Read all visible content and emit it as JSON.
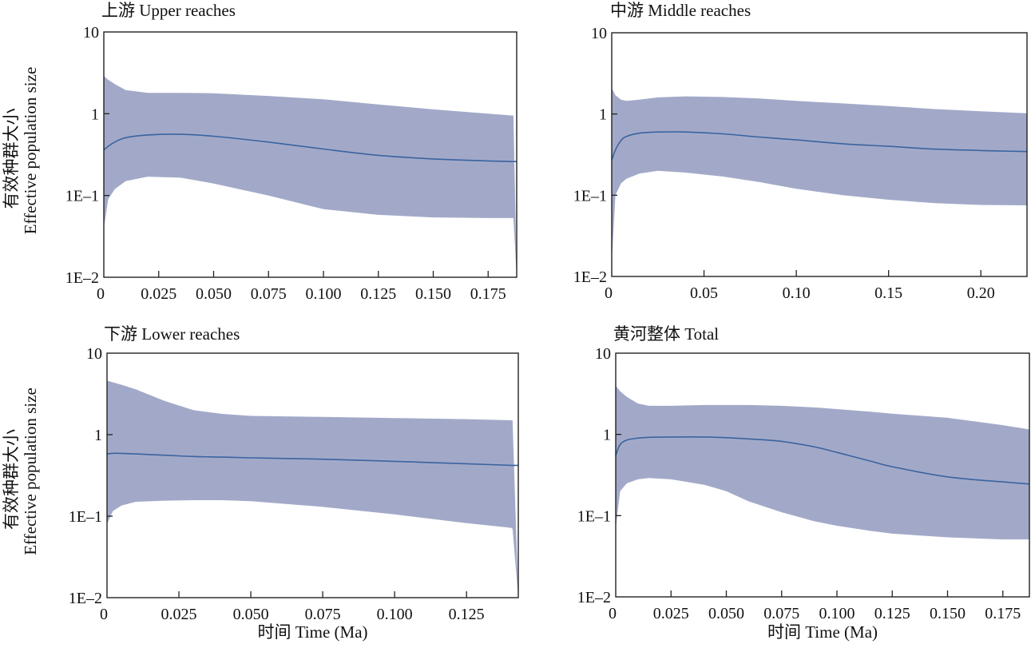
{
  "chart_data": [
    {
      "type": "area",
      "title": "上游 Upper reaches",
      "xlabel": "",
      "ylabel_cn": "有效种群大小",
      "ylabel_en": "Effective population size",
      "yscale": "log",
      "ylim": [
        0.01,
        10
      ],
      "xlim": [
        0,
        0.188
      ],
      "yticks": [
        {
          "v": 10,
          "label": "10"
        },
        {
          "v": 1,
          "label": "1"
        },
        {
          "v": 0.1,
          "label": "1E–1"
        },
        {
          "v": 0.01,
          "label": "1E–2"
        }
      ],
      "xticks": [
        {
          "v": 0,
          "label": "0"
        },
        {
          "v": 0.025,
          "label": "0.025"
        },
        {
          "v": 0.05,
          "label": "0.050"
        },
        {
          "v": 0.075,
          "label": "0.075"
        },
        {
          "v": 0.1,
          "label": "0.100"
        },
        {
          "v": 0.125,
          "label": "0.125"
        },
        {
          "v": 0.15,
          "label": "0.150"
        },
        {
          "v": 0.175,
          "label": "0.175"
        }
      ],
      "x": [
        0,
        0.002,
        0.005,
        0.01,
        0.02,
        0.035,
        0.05,
        0.075,
        0.1,
        0.125,
        0.15,
        0.175,
        0.186,
        0.1865,
        0.188
      ],
      "upper": [
        2.9,
        2.6,
        2.3,
        1.95,
        1.8,
        1.8,
        1.78,
        1.65,
        1.5,
        1.3,
        1.13,
        1.0,
        0.95,
        0.95,
        0.01
      ],
      "median": [
        0.36,
        0.4,
        0.45,
        0.51,
        0.55,
        0.56,
        0.53,
        0.45,
        0.37,
        0.31,
        0.28,
        0.265,
        0.26,
        0.26,
        0.26
      ],
      "lower": [
        0.04,
        0.09,
        0.12,
        0.15,
        0.17,
        0.165,
        0.14,
        0.1,
        0.068,
        0.058,
        0.054,
        0.053,
        0.053,
        0.053,
        0.01
      ]
    },
    {
      "type": "area",
      "title": "中游 Middle  reaches",
      "xlabel": "",
      "yscale": "log",
      "ylim": [
        0.01,
        10
      ],
      "xlim": [
        0,
        0.225
      ],
      "yticks": [
        {
          "v": 10,
          "label": "10"
        },
        {
          "v": 1,
          "label": "1"
        },
        {
          "v": 0.1,
          "label": "1E–1"
        },
        {
          "v": 0.01,
          "label": "1E–2"
        }
      ],
      "xticks": [
        {
          "v": 0,
          "label": "0"
        },
        {
          "v": 0.05,
          "label": "0.05"
        },
        {
          "v": 0.1,
          "label": "0.10"
        },
        {
          "v": 0.15,
          "label": "0.15"
        },
        {
          "v": 0.2,
          "label": "0.20"
        }
      ],
      "x": [
        0,
        0.002,
        0.005,
        0.008,
        0.015,
        0.025,
        0.04,
        0.06,
        0.08,
        0.1,
        0.125,
        0.15,
        0.175,
        0.2,
        0.225
      ],
      "upper": [
        2.1,
        1.7,
        1.5,
        1.45,
        1.5,
        1.6,
        1.65,
        1.62,
        1.55,
        1.45,
        1.35,
        1.25,
        1.15,
        1.08,
        1.02
      ],
      "median": [
        0.27,
        0.36,
        0.47,
        0.53,
        0.58,
        0.6,
        0.6,
        0.57,
        0.52,
        0.48,
        0.43,
        0.4,
        0.37,
        0.355,
        0.345
      ],
      "lower": [
        0.015,
        0.1,
        0.14,
        0.16,
        0.185,
        0.2,
        0.19,
        0.17,
        0.145,
        0.12,
        0.1,
        0.088,
        0.08,
        0.076,
        0.075
      ]
    },
    {
      "type": "area",
      "title": "下游 Lower reaches",
      "xlabel": "时间 Time (Ma)",
      "ylabel_cn": "有效种群大小",
      "ylabel_en": "Effective population size",
      "yscale": "log",
      "ylim": [
        0.01,
        10
      ],
      "xlim": [
        0,
        0.143
      ],
      "yticks": [
        {
          "v": 10,
          "label": "10"
        },
        {
          "v": 1,
          "label": "1"
        },
        {
          "v": 0.1,
          "label": "1E–1"
        },
        {
          "v": 0.01,
          "label": "1E–2"
        }
      ],
      "xticks": [
        {
          "v": 0,
          "label": "0"
        },
        {
          "v": 0.025,
          "label": "0.025"
        },
        {
          "v": 0.05,
          "label": "0.050"
        },
        {
          "v": 0.075,
          "label": "0.075"
        },
        {
          "v": 0.1,
          "label": "0.100"
        },
        {
          "v": 0.125,
          "label": "0.125"
        }
      ],
      "x": [
        0,
        0.002,
        0.005,
        0.01,
        0.02,
        0.03,
        0.04,
        0.05,
        0.075,
        0.1,
        0.125,
        0.1405,
        0.141,
        0.143
      ],
      "upper": [
        4.6,
        4.4,
        4.1,
        3.6,
        2.6,
        2.0,
        1.8,
        1.7,
        1.65,
        1.6,
        1.55,
        1.5,
        1.5,
        0.01
      ],
      "median": [
        0.58,
        0.59,
        0.59,
        0.58,
        0.56,
        0.54,
        0.53,
        0.52,
        0.5,
        0.47,
        0.44,
        0.42,
        0.42,
        0.42
      ],
      "lower": [
        0.08,
        0.115,
        0.135,
        0.15,
        0.155,
        0.157,
        0.157,
        0.153,
        0.13,
        0.105,
        0.082,
        0.072,
        0.07,
        0.01
      ]
    },
    {
      "type": "area",
      "title": "黄河整体 Total",
      "xlabel": "时间 Time (Ma)",
      "yscale": "log",
      "ylim": [
        0.01,
        10
      ],
      "xlim": [
        0,
        0.187
      ],
      "yticks": [
        {
          "v": 10,
          "label": "10"
        },
        {
          "v": 1,
          "label": "1"
        },
        {
          "v": 0.1,
          "label": "1E–1"
        },
        {
          "v": 0.01,
          "label": "1E–2"
        }
      ],
      "xticks": [
        {
          "v": 0,
          "label": "0"
        },
        {
          "v": 0.025,
          "label": "0.025"
        },
        {
          "v": 0.05,
          "label": "0.050"
        },
        {
          "v": 0.075,
          "label": "0.075"
        },
        {
          "v": 0.1,
          "label": "0.100"
        },
        {
          "v": 0.125,
          "label": "0.125"
        },
        {
          "v": 0.15,
          "label": "0.150"
        },
        {
          "v": 0.175,
          "label": "0.175"
        }
      ],
      "x": [
        0,
        0.002,
        0.005,
        0.01,
        0.015,
        0.025,
        0.04,
        0.05,
        0.06,
        0.075,
        0.09,
        0.1,
        0.115,
        0.125,
        0.15,
        0.175,
        0.187
      ],
      "upper": [
        4.0,
        3.4,
        2.9,
        2.4,
        2.25,
        2.25,
        2.3,
        2.3,
        2.3,
        2.25,
        2.15,
        2.05,
        1.9,
        1.8,
        1.6,
        1.3,
        1.15
      ],
      "median": [
        0.55,
        0.75,
        0.85,
        0.9,
        0.92,
        0.93,
        0.93,
        0.91,
        0.88,
        0.82,
        0.7,
        0.6,
        0.47,
        0.4,
        0.3,
        0.26,
        0.245
      ],
      "lower": [
        0.07,
        0.2,
        0.25,
        0.28,
        0.29,
        0.28,
        0.24,
        0.2,
        0.15,
        0.11,
        0.085,
        0.075,
        0.065,
        0.06,
        0.054,
        0.051,
        0.051
      ]
    }
  ],
  "colors": {
    "band": "#A2A9C8",
    "line": "#3A63A0",
    "axis": "#222222"
  }
}
